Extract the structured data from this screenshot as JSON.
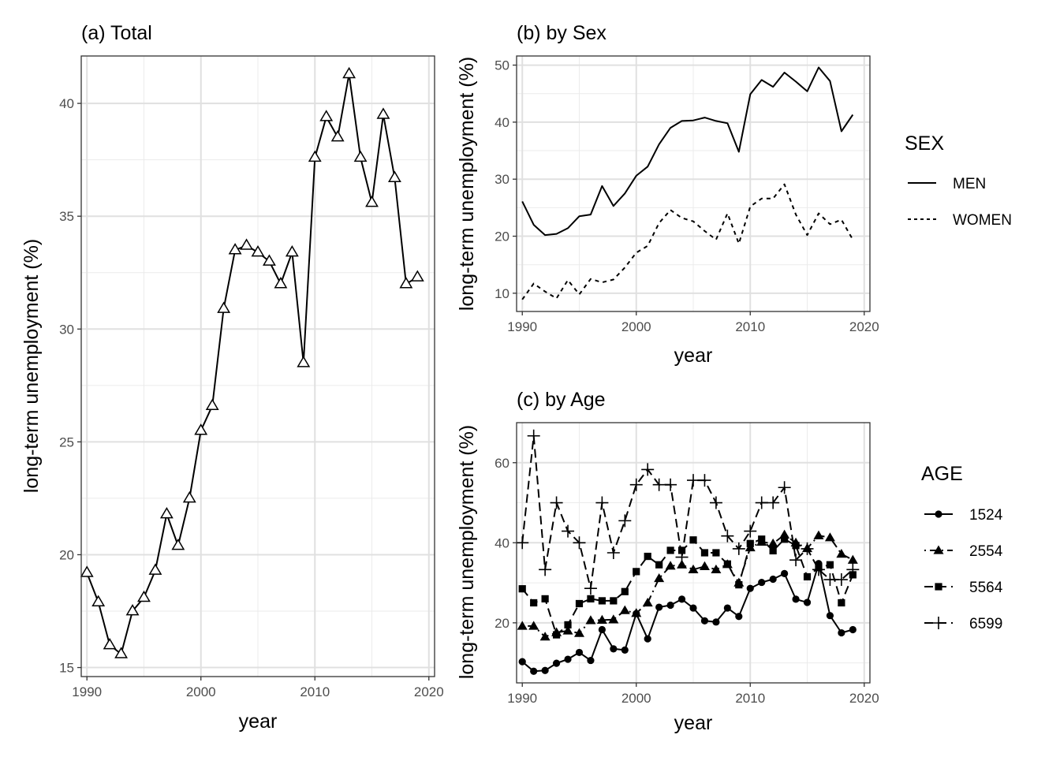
{
  "chart_data": [
    {
      "type": "line",
      "title": "(a) Total",
      "xlabel": "year",
      "ylabel": "long-term unemployment (%)",
      "xlim": [
        1989.5,
        2020.5
      ],
      "ylim": [
        14.6,
        42.1
      ],
      "xticks": [
        1990,
        2000,
        2010,
        2020
      ],
      "xtick_labels": [
        "1990",
        "2000",
        "2010",
        "2020"
      ],
      "yticks": [
        15,
        20,
        25,
        30,
        35,
        40
      ],
      "ytick_labels": [
        "15",
        "20",
        "25",
        "30",
        "35",
        "40"
      ],
      "grid": true,
      "marker": "open-triangle",
      "series": [
        {
          "x": [
            1990,
            1991,
            1992,
            1993,
            1994,
            1995,
            1996,
            1997,
            1998,
            1999,
            2000,
            2001,
            2002,
            2003,
            2004,
            2005,
            2006,
            2007,
            2008,
            2009,
            2010,
            2011,
            2012,
            2013,
            2014,
            2015,
            2016,
            2017,
            2018,
            2019
          ],
          "values": [
            19.2,
            17.9,
            16.0,
            15.6,
            17.5,
            18.1,
            19.3,
            21.8,
            20.4,
            22.5,
            25.5,
            26.6,
            30.9,
            33.5,
            33.7,
            33.4,
            33.0,
            32.0,
            33.4,
            28.5,
            37.6,
            39.4,
            38.5,
            41.3,
            37.6,
            35.6,
            39.5,
            36.7,
            32.0,
            32.3
          ]
        }
      ]
    },
    {
      "type": "line",
      "title": "(b) by Sex",
      "xlabel": "year",
      "ylabel": "long-term unemployment (%)",
      "xlim": [
        1989.5,
        2020.5
      ],
      "ylim": [
        6.8,
        51.6
      ],
      "xticks": [
        1990,
        2000,
        2010,
        2020
      ],
      "xtick_labels": [
        "1990",
        "2000",
        "2010",
        "2020"
      ],
      "yticks": [
        10,
        20,
        30,
        40,
        50
      ],
      "ytick_labels": [
        "10",
        "20",
        "30",
        "40",
        "50"
      ],
      "grid": true,
      "legend": {
        "title": "SEX",
        "position": "right"
      },
      "series": [
        {
          "name": "MEN",
          "dash": "solid",
          "x": [
            1990,
            1991,
            1992,
            1993,
            1994,
            1995,
            1996,
            1997,
            1998,
            1999,
            2000,
            2001,
            2002,
            2003,
            2004,
            2005,
            2006,
            2007,
            2008,
            2009,
            2010,
            2011,
            2012,
            2013,
            2014,
            2015,
            2016,
            2017,
            2018,
            2019
          ],
          "values": [
            26.1,
            22.0,
            20.2,
            20.4,
            21.4,
            23.5,
            23.8,
            28.8,
            25.3,
            27.5,
            30.6,
            32.2,
            36.1,
            39.0,
            40.2,
            40.3,
            40.8,
            40.2,
            39.8,
            34.8,
            44.9,
            47.4,
            46.2,
            48.7,
            47.1,
            45.4,
            49.6,
            47.2,
            38.4,
            41.3
          ]
        },
        {
          "name": "WOMEN",
          "dash": "dotted",
          "x": [
            1990,
            1991,
            1992,
            1993,
            1994,
            1995,
            1996,
            1997,
            1998,
            1999,
            2000,
            2001,
            2002,
            2003,
            2004,
            2005,
            2006,
            2007,
            2008,
            2009,
            2010,
            2011,
            2012,
            2013,
            2014,
            2015,
            2016,
            2017,
            2018,
            2019
          ],
          "values": [
            8.9,
            11.7,
            10.3,
            9.1,
            12.3,
            9.8,
            12.5,
            11.9,
            12.4,
            14.5,
            17.1,
            18.3,
            22.3,
            24.6,
            23.2,
            22.6,
            20.9,
            19.4,
            24.0,
            18.7,
            25.2,
            26.6,
            26.6,
            29.1,
            23.8,
            20.2,
            24.0,
            22.1,
            22.9,
            19.4
          ]
        }
      ]
    },
    {
      "type": "line",
      "title": "(c) by Age",
      "xlabel": "year",
      "ylabel": "long-term unemployment (%)",
      "xlim": [
        1989.5,
        2020.5
      ],
      "ylim": [
        5.0,
        70.0
      ],
      "xticks": [
        1990,
        2000,
        2010,
        2020
      ],
      "xtick_labels": [
        "1990",
        "2000",
        "2010",
        "2020"
      ],
      "yticks": [
        20,
        40,
        60
      ],
      "ytick_labels": [
        "20",
        "40",
        "60"
      ],
      "grid": true,
      "legend": {
        "title": "AGE",
        "position": "right"
      },
      "series": [
        {
          "name": "1524",
          "dash": "solid",
          "marker": "circle",
          "x": [
            1990,
            1991,
            1992,
            1993,
            1994,
            1995,
            1996,
            1997,
            1998,
            1999,
            2000,
            2001,
            2002,
            2003,
            2004,
            2005,
            2006,
            2007,
            2008,
            2009,
            2010,
            2011,
            2012,
            2013,
            2014,
            2015,
            2016,
            2017,
            2018,
            2019
          ],
          "values": [
            10.3,
            7.9,
            8.1,
            9.9,
            10.9,
            12.6,
            10.6,
            18.3,
            13.5,
            13.2,
            22.3,
            16.0,
            23.9,
            24.4,
            25.9,
            23.7,
            20.5,
            20.2,
            23.7,
            21.6,
            28.6,
            30.1,
            30.9,
            32.3,
            25.9,
            25.1,
            34.8,
            21.8,
            17.5,
            18.3
          ]
        },
        {
          "name": "2554",
          "dash": "dash-dot",
          "marker": "triangle",
          "x": [
            1990,
            1991,
            1992,
            1993,
            1994,
            1995,
            1996,
            1997,
            1998,
            1999,
            2000,
            2001,
            2002,
            2003,
            2004,
            2005,
            2006,
            2007,
            2008,
            2009,
            2010,
            2011,
            2012,
            2013,
            2014,
            2015,
            2016,
            2017,
            2018,
            2019
          ],
          "values": [
            19.2,
            19.2,
            16.5,
            17.6,
            18.0,
            17.4,
            20.6,
            20.7,
            20.8,
            23.1,
            22.4,
            25.0,
            31.1,
            34.2,
            34.5,
            33.3,
            34.1,
            33.3,
            34.6,
            30.0,
            38.8,
            40.2,
            39.8,
            42.0,
            40.0,
            38.6,
            41.8,
            41.3,
            37.2,
            35.7
          ]
        },
        {
          "name": "5564",
          "dash": "dashed",
          "marker": "square",
          "x": [
            1990,
            1991,
            1992,
            1993,
            1994,
            1995,
            1996,
            1997,
            1998,
            1999,
            2000,
            2001,
            2002,
            2003,
            2004,
            2005,
            2006,
            2007,
            2008,
            2009,
            2010,
            2011,
            2012,
            2013,
            2014,
            2015,
            2016,
            2017,
            2018,
            2019
          ],
          "values": [
            28.5,
            25.0,
            26.0,
            17.0,
            19.5,
            24.8,
            26.0,
            25.5,
            25.5,
            27.8,
            32.8,
            36.6,
            34.5,
            38.1,
            38.1,
            40.7,
            37.5,
            37.5,
            34.7,
            29.5,
            39.8,
            40.9,
            38.0,
            40.9,
            39.3,
            31.5,
            33.8,
            34.5,
            25.0,
            32.0
          ]
        },
        {
          "name": "6599",
          "dash": "dashed",
          "marker": "plus",
          "x": [
            1990,
            1991,
            1992,
            1993,
            1994,
            1995,
            1996,
            1997,
            1998,
            1999,
            2000,
            2001,
            2002,
            2003,
            2004,
            2005,
            2006,
            2007,
            2008,
            2009,
            2010,
            2011,
            2012,
            2013,
            2014,
            2015,
            2016,
            2017,
            2018,
            2019
          ],
          "values": [
            40.0,
            66.7,
            33.3,
            50.0,
            42.9,
            40.0,
            28.6,
            50.0,
            37.5,
            45.5,
            54.5,
            58.3,
            54.5,
            54.5,
            36.4,
            55.6,
            55.6,
            50.0,
            41.7,
            38.5,
            42.9,
            50.0,
            50.0,
            53.8,
            35.7,
            38.5,
            33.3,
            30.8,
            30.8,
            33.3
          ]
        }
      ]
    }
  ]
}
